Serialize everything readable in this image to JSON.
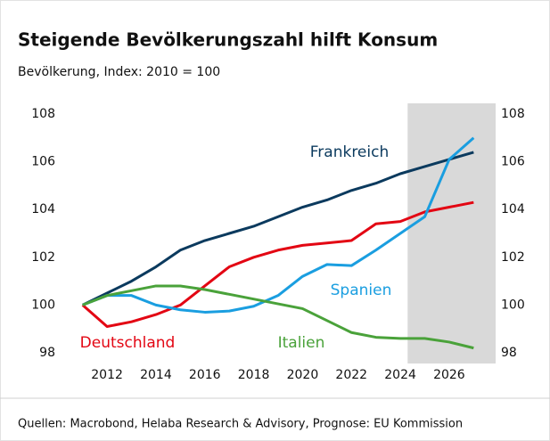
{
  "chart_data": {
    "type": "line",
    "title": "Steigende Bevölkerungszahl hilft Konsum",
    "subtitle": "Bevölkerung, Index: 2010 = 100",
    "source": "Quellen: Macrobond, Helaba Research & Advisory, Prognose: EU Kommission",
    "x": [
      2011,
      2012,
      2013,
      2014,
      2015,
      2016,
      2017,
      2018,
      2019,
      2020,
      2021,
      2022,
      2023,
      2024,
      2025,
      2026,
      2027
    ],
    "xlim": [
      2010.1,
      2027.9
    ],
    "xticks": [
      2012,
      2014,
      2016,
      2018,
      2020,
      2022,
      2024,
      2026
    ],
    "ylim": [
      98,
      108
    ],
    "yticks": [
      98,
      100,
      102,
      104,
      106,
      108
    ],
    "y2lim": [
      98,
      108
    ],
    "y2ticks": [
      98,
      100,
      102,
      104,
      106,
      108
    ],
    "shaded_xrange": [
      2024.3,
      2027.9
    ],
    "series": [
      {
        "name": "Frankreich",
        "color": "#0b3a5e",
        "values": [
          100,
          100.5,
          101.0,
          101.6,
          102.3,
          102.7,
          103.0,
          103.3,
          103.7,
          104.1,
          104.4,
          104.8,
          105.1,
          105.5,
          105.8,
          106.1,
          106.4
        ]
      },
      {
        "name": "Deutschland",
        "color": "#e30613",
        "values": [
          100,
          99.1,
          99.3,
          99.6,
          100.0,
          100.8,
          101.6,
          102.0,
          102.3,
          102.5,
          102.6,
          102.7,
          103.4,
          103.5,
          103.9,
          104.1,
          104.3
        ]
      },
      {
        "name": "Spanien",
        "color": "#1a9ee0",
        "values": [
          100,
          100.4,
          100.4,
          100.0,
          99.8,
          99.7,
          99.75,
          99.95,
          100.4,
          101.2,
          101.7,
          101.65,
          102.3,
          103.0,
          103.7,
          106.1,
          107.0
        ]
      },
      {
        "name": "Italien",
        "color": "#4aa23a",
        "values": [
          100,
          100.4,
          100.6,
          100.8,
          100.8,
          100.65,
          100.45,
          100.25,
          100.05,
          99.85,
          99.35,
          98.85,
          98.65,
          98.6,
          98.6,
          98.45,
          98.2
        ]
      }
    ]
  }
}
